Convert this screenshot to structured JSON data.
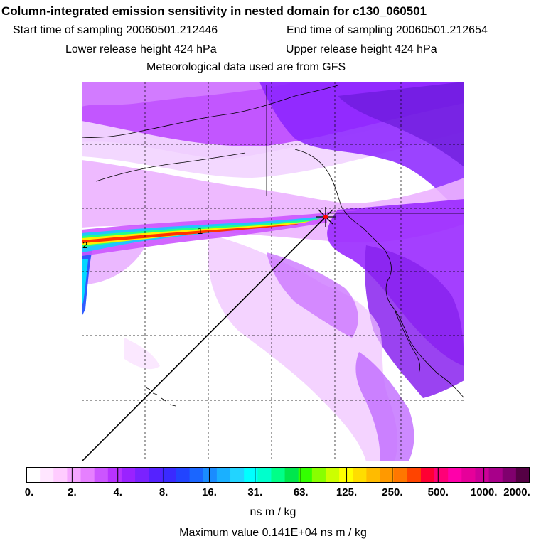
{
  "title": "Column-integrated emission sensitivity in nested domain for c130_060501",
  "header": {
    "start_label": "Start time of sampling 20060501.212446",
    "end_label": "End time of sampling 20060501.212654",
    "lower_height": "Lower release height  424 hPa",
    "upper_height": "Upper release height  424 hPa",
    "met_source": "Meteorological data used are from GFS"
  },
  "map": {
    "plume_labels": [
      "1",
      "2"
    ],
    "grid": true
  },
  "colorbar": {
    "tick_labels": [
      "0.",
      "2.",
      "4.",
      "8.",
      "16.",
      "31.",
      "63.",
      "125.",
      "250.",
      "500.",
      "1000.",
      "2000."
    ],
    "colors": [
      "#ffffff",
      "#ffe6ff",
      "#ffccff",
      "#f5a6ff",
      "#e680ff",
      "#cc55ff",
      "#b833ff",
      "#9a22ff",
      "#7a22ff",
      "#5522ff",
      "#3a2aff",
      "#2244ff",
      "#1a66ff",
      "#1a8cff",
      "#1ab0ff",
      "#22d4ff",
      "#00ffff",
      "#00ffcc",
      "#00ff88",
      "#00e64d",
      "#33ff00",
      "#88ff00",
      "#ccff00",
      "#ffff00",
      "#ffdd00",
      "#ffbb00",
      "#ff9900",
      "#ff7700",
      "#ff4400",
      "#ff0033",
      "#ff0077",
      "#ff00aa",
      "#e6009a",
      "#cc0099",
      "#a8008a",
      "#80006e",
      "#550044"
    ],
    "unit": "ns m / kg"
  },
  "max_value": "Maximum value  0.141E+04 ns m / kg"
}
